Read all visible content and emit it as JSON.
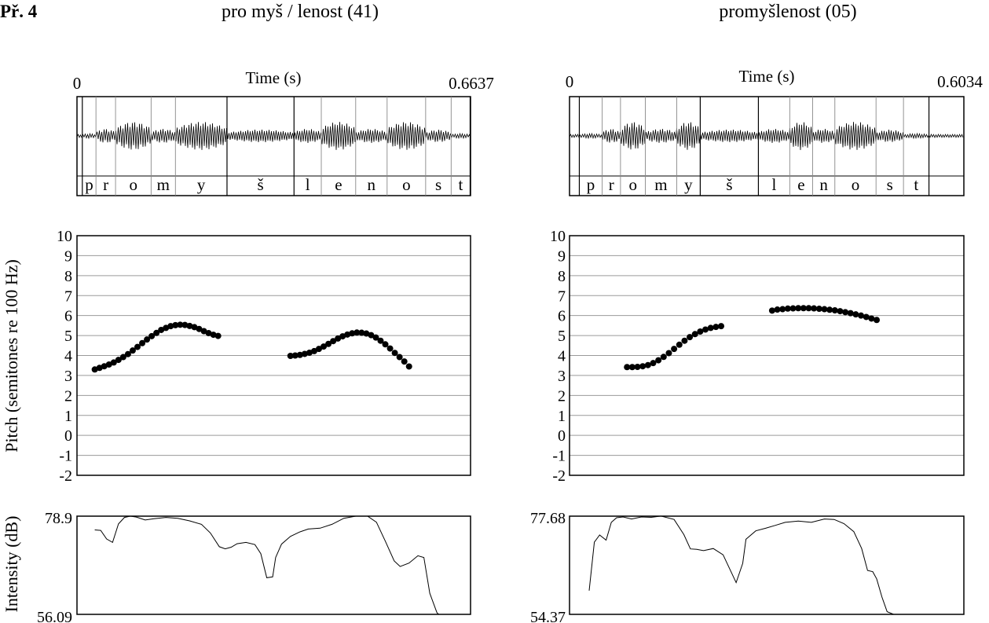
{
  "header": {
    "example_label": "Př. 4",
    "left_title": "pro myš / lenost   (41)",
    "right_title": "promyšlenost   (05)"
  },
  "y_axis_labels": {
    "pitch": "Pitch (semitones re 100 Hz)",
    "intensity": "Intensity (dB)"
  },
  "chart_data": [
    {
      "type": "scatter",
      "panel": "left",
      "title": "pro myš / lenost   (41)",
      "waveform": {
        "time_label": "Time (s)",
        "time_start": "0",
        "time_end": "0.6637",
        "duration": 0.6637,
        "segments": [
          {
            "label": "p",
            "start": 0.009,
            "end": 0.032
          },
          {
            "label": "r",
            "start": 0.032,
            "end": 0.065
          },
          {
            "label": "o",
            "start": 0.065,
            "end": 0.125
          },
          {
            "label": "m",
            "start": 0.125,
            "end": 0.166
          },
          {
            "label": "y",
            "start": 0.166,
            "end": 0.253
          },
          {
            "label": "š",
            "start": 0.253,
            "end": 0.366
          },
          {
            "label": "l",
            "start": 0.366,
            "end": 0.412
          },
          {
            "label": "e",
            "start": 0.412,
            "end": 0.47
          },
          {
            "label": "n",
            "start": 0.47,
            "end": 0.523
          },
          {
            "label": "o",
            "start": 0.523,
            "end": 0.588
          },
          {
            "label": "s",
            "start": 0.588,
            "end": 0.631
          },
          {
            "label": "t",
            "start": 0.631,
            "end": 0.663
          }
        ]
      },
      "pitch": {
        "ylabel": "Pitch (semitones re 100 Hz)",
        "ylim": [
          -2,
          10
        ],
        "yticks": [
          "10",
          "9",
          "8",
          "7",
          "6",
          "5",
          "4",
          "3",
          "2",
          "1",
          "0",
          "-1",
          "-2"
        ],
        "series": [
          {
            "x": [
              0.03,
              0.038,
              0.046,
              0.054,
              0.062,
              0.07,
              0.078,
              0.086,
              0.094,
              0.102,
              0.11,
              0.118,
              0.126,
              0.134,
              0.142,
              0.15,
              0.158,
              0.166,
              0.174,
              0.182,
              0.19,
              0.198,
              0.206,
              0.214,
              0.222,
              0.23,
              0.238
            ],
            "y": [
              3.3,
              3.38,
              3.46,
              3.55,
              3.65,
              3.78,
              3.92,
              4.07,
              4.25,
              4.43,
              4.62,
              4.8,
              4.97,
              5.13,
              5.28,
              5.38,
              5.47,
              5.52,
              5.54,
              5.53,
              5.48,
              5.42,
              5.33,
              5.22,
              5.12,
              5.04,
              4.98
            ]
          },
          {
            "x": [
              0.36,
              0.368,
              0.376,
              0.384,
              0.392,
              0.4,
              0.408,
              0.416,
              0.424,
              0.432,
              0.44,
              0.448,
              0.456,
              0.464,
              0.472,
              0.48,
              0.488,
              0.496,
              0.504,
              0.512,
              0.52,
              0.528,
              0.536,
              0.544,
              0.552,
              0.56
            ],
            "y": [
              3.98,
              4.0,
              4.03,
              4.08,
              4.14,
              4.22,
              4.33,
              4.45,
              4.58,
              4.72,
              4.85,
              4.96,
              5.05,
              5.11,
              5.15,
              5.14,
              5.1,
              5.02,
              4.9,
              4.74,
              4.56,
              4.35,
              4.13,
              3.92,
              3.7,
              3.45
            ]
          }
        ]
      },
      "intensity": {
        "ylabel": "Intensity (dB)",
        "ymax_label": "78.9",
        "ymin_label": "56.09",
        "ylim": [
          56.09,
          78.9
        ],
        "x": [
          0.03,
          0.04,
          0.05,
          0.06,
          0.07,
          0.08,
          0.09,
          0.1,
          0.115,
          0.13,
          0.15,
          0.17,
          0.19,
          0.21,
          0.225,
          0.24,
          0.25,
          0.26,
          0.27,
          0.285,
          0.3,
          0.31,
          0.32,
          0.33,
          0.335,
          0.345,
          0.36,
          0.375,
          0.39,
          0.41,
          0.43,
          0.45,
          0.47,
          0.49,
          0.505,
          0.52,
          0.535,
          0.545,
          0.56,
          0.575,
          0.585,
          0.595,
          0.607,
          0.61
        ],
        "y": [
          75.7,
          75.6,
          73.6,
          72.8,
          77.1,
          78.6,
          78.9,
          78.7,
          78.0,
          78.3,
          78.6,
          78.4,
          77.8,
          77.0,
          75.0,
          71.8,
          71.3,
          71.7,
          72.5,
          72.8,
          72.3,
          70.2,
          64.6,
          64.8,
          69.3,
          72.4,
          74.2,
          75.2,
          75.9,
          76.1,
          77.0,
          78.4,
          78.9,
          78.9,
          77.5,
          73.1,
          68.5,
          67.2,
          68.0,
          69.7,
          69.3,
          61.0,
          56.5,
          56.09
        ]
      }
    },
    {
      "type": "scatter",
      "panel": "right",
      "title": "promyšlenost   (05)",
      "waveform": {
        "time_label": "Time (s)",
        "time_start": "0",
        "time_end": "0.6034",
        "duration": 0.6034,
        "segments": [
          {
            "label": "p",
            "start": 0.015,
            "end": 0.05
          },
          {
            "label": "r",
            "start": 0.05,
            "end": 0.078
          },
          {
            "label": "o",
            "start": 0.078,
            "end": 0.116
          },
          {
            "label": "m",
            "start": 0.116,
            "end": 0.164
          },
          {
            "label": "y",
            "start": 0.164,
            "end": 0.2
          },
          {
            "label": "š",
            "start": 0.2,
            "end": 0.289
          },
          {
            "label": "l",
            "start": 0.289,
            "end": 0.337
          },
          {
            "label": "e",
            "start": 0.337,
            "end": 0.372
          },
          {
            "label": "n",
            "start": 0.372,
            "end": 0.406
          },
          {
            "label": "o",
            "start": 0.406,
            "end": 0.469
          },
          {
            "label": "s",
            "start": 0.469,
            "end": 0.511
          },
          {
            "label": "t",
            "start": 0.511,
            "end": 0.55
          }
        ]
      },
      "pitch": {
        "ylabel": "Pitch (semitones re 100 Hz)",
        "ylim": [
          -2,
          10
        ],
        "yticks": [
          "10",
          "9",
          "8",
          "7",
          "6",
          "5",
          "4",
          "3",
          "2",
          "1",
          "0",
          "-1",
          "-2"
        ],
        "series": [
          {
            "x": [
              0.088,
              0.096,
              0.104,
              0.112,
              0.12,
              0.128,
              0.136,
              0.144,
              0.152,
              0.16,
              0.168,
              0.176,
              0.184,
              0.192,
              0.2,
              0.208,
              0.216,
              0.224,
              0.232
            ],
            "y": [
              3.42,
              3.42,
              3.43,
              3.46,
              3.52,
              3.62,
              3.76,
              3.93,
              4.12,
              4.33,
              4.54,
              4.74,
              4.92,
              5.07,
              5.2,
              5.3,
              5.38,
              5.43,
              5.47
            ]
          },
          {
            "x": [
              0.31,
              0.318,
              0.326,
              0.334,
              0.342,
              0.35,
              0.358,
              0.366,
              0.374,
              0.382,
              0.39,
              0.398,
              0.406,
              0.414,
              0.422,
              0.43,
              0.438,
              0.446,
              0.454,
              0.462,
              0.47
            ],
            "y": [
              6.25,
              6.3,
              6.32,
              6.35,
              6.36,
              6.37,
              6.37,
              6.37,
              6.36,
              6.34,
              6.32,
              6.29,
              6.26,
              6.22,
              6.17,
              6.12,
              6.06,
              6.0,
              5.93,
              5.85,
              5.78
            ]
          }
        ]
      },
      "intensity": {
        "ylabel": "Intensity (dB)",
        "ymax_label": "77.68",
        "ymin_label": "54.37",
        "ylim": [
          54.37,
          77.68
        ],
        "x": [
          0.03,
          0.038,
          0.046,
          0.056,
          0.064,
          0.072,
          0.082,
          0.095,
          0.11,
          0.125,
          0.14,
          0.16,
          0.175,
          0.185,
          0.195,
          0.205,
          0.22,
          0.235,
          0.255,
          0.265,
          0.27,
          0.285,
          0.3,
          0.315,
          0.33,
          0.35,
          0.37,
          0.39,
          0.405,
          0.42,
          0.435,
          0.447,
          0.456,
          0.464,
          0.47,
          0.478,
          0.486,
          0.496
        ],
        "y": [
          60.0,
          71.5,
          73.2,
          72.0,
          76.2,
          77.3,
          77.5,
          77.0,
          77.5,
          77.4,
          77.7,
          76.9,
          73.3,
          69.9,
          69.8,
          69.5,
          70.0,
          68.5,
          61.9,
          66.5,
          72.2,
          74.2,
          74.8,
          75.5,
          76.2,
          76.5,
          76.2,
          77.0,
          76.9,
          75.9,
          74.0,
          70.0,
          64.8,
          64.5,
          62.8,
          58.5,
          55.0,
          54.37
        ]
      }
    }
  ]
}
